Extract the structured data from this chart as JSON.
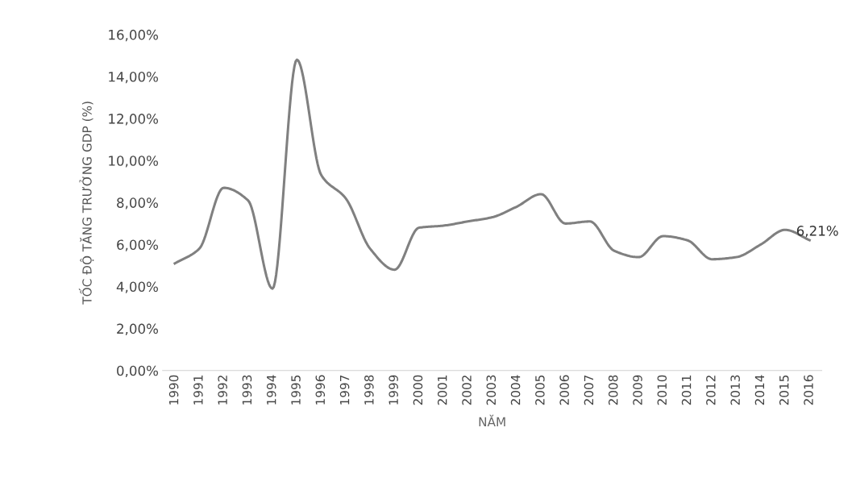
{
  "chart_data": {
    "type": "line",
    "xlabel": "NĂM",
    "ylabel": "TỐC ĐỘ TĂNG TRƯỞNG GDP (%)",
    "categories": [
      "1990",
      "1991",
      "1992",
      "1993",
      "1994",
      "1995",
      "1996",
      "1997",
      "1998",
      "1999",
      "2000",
      "2001",
      "2002",
      "2003",
      "2004",
      "2005",
      "2006",
      "2007",
      "2008",
      "2009",
      "2010",
      "2011",
      "2012",
      "2013",
      "2014",
      "2015",
      "2016"
    ],
    "series": [
      {
        "color": "#808080",
        "values": [
          5.1,
          5.8,
          8.7,
          8.1,
          3.9,
          14.8,
          9.3,
          8.2,
          5.8,
          4.8,
          6.8,
          6.9,
          7.1,
          7.3,
          7.8,
          8.4,
          7.0,
          7.1,
          5.7,
          5.4,
          6.4,
          6.2,
          5.3,
          5.4,
          6.0,
          6.7,
          6.21
        ],
        "value_labels": [
          null,
          null,
          null,
          null,
          null,
          null,
          null,
          null,
          null,
          null,
          null,
          null,
          null,
          null,
          null,
          null,
          null,
          null,
          null,
          null,
          null,
          null,
          null,
          null,
          null,
          null,
          "6,21%"
        ]
      }
    ],
    "ylim": [
      0,
      16
    ],
    "yticks": [
      {
        "value": 0,
        "label": "0,00%"
      },
      {
        "value": 2,
        "label": "2,00%"
      },
      {
        "value": 4,
        "label": "4,00%"
      },
      {
        "value": 6,
        "label": "6,00%"
      },
      {
        "value": 8,
        "label": "8,00%"
      },
      {
        "value": 10,
        "label": "10,00%"
      },
      {
        "value": 12,
        "label": "12,00%"
      },
      {
        "value": 14,
        "label": "14,00%"
      },
      {
        "value": 16,
        "label": "16,00%"
      }
    ],
    "grid": false,
    "marker": "none",
    "line_style": "solid"
  }
}
